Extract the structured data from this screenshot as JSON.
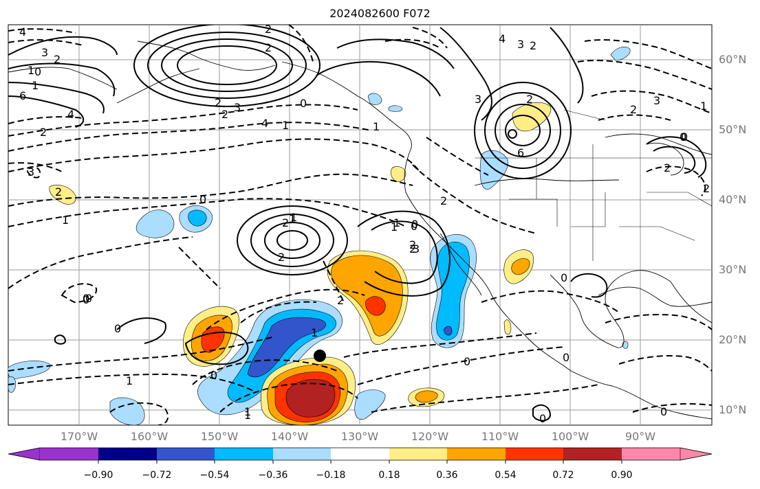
{
  "title": "2024082600 F072",
  "lat_labels": [
    "60°N",
    "50°N",
    "40°N",
    "30°N",
    "20°N",
    "10°N"
  ],
  "lon_labels": [
    "170°W",
    "160°W",
    "150°W",
    "140°W",
    "130°W",
    "120°W",
    "110°W",
    "100°W",
    "90°W"
  ],
  "colorbar": {
    "ticks": [
      "−0.90",
      "−0.72",
      "−0.54",
      "−0.36",
      "−0.18",
      "0.18",
      "0.36",
      "0.54",
      "0.72",
      "0.90"
    ],
    "colors": [
      "#9933cc",
      "#000088",
      "#3355cc",
      "#00bbff",
      "#aaddff",
      "#ffffff",
      "#ffee88",
      "#ffa500",
      "#ff3300",
      "#b22222",
      "#ff88aa"
    ]
  },
  "contour_labels": [
    "4",
    "3",
    "2",
    "1",
    "0",
    "1",
    "6",
    "4",
    "2",
    "3",
    "2",
    "1",
    "0",
    "2",
    "2",
    "2",
    "3",
    "2",
    "0",
    "1",
    "4",
    "1",
    "3",
    "2",
    "3",
    "2",
    "4",
    "6",
    "3",
    "0",
    "1",
    "2",
    "2",
    "2",
    "1",
    "2",
    "0",
    "0",
    "1",
    "2",
    "2",
    "2",
    "2",
    "0",
    "1",
    "3",
    "2",
    "1",
    "0",
    "0",
    "0",
    "0",
    "0",
    "0",
    "0",
    "1",
    "0",
    "1",
    "1",
    "1",
    "0",
    "0"
  ],
  "marker": "storm-center"
}
